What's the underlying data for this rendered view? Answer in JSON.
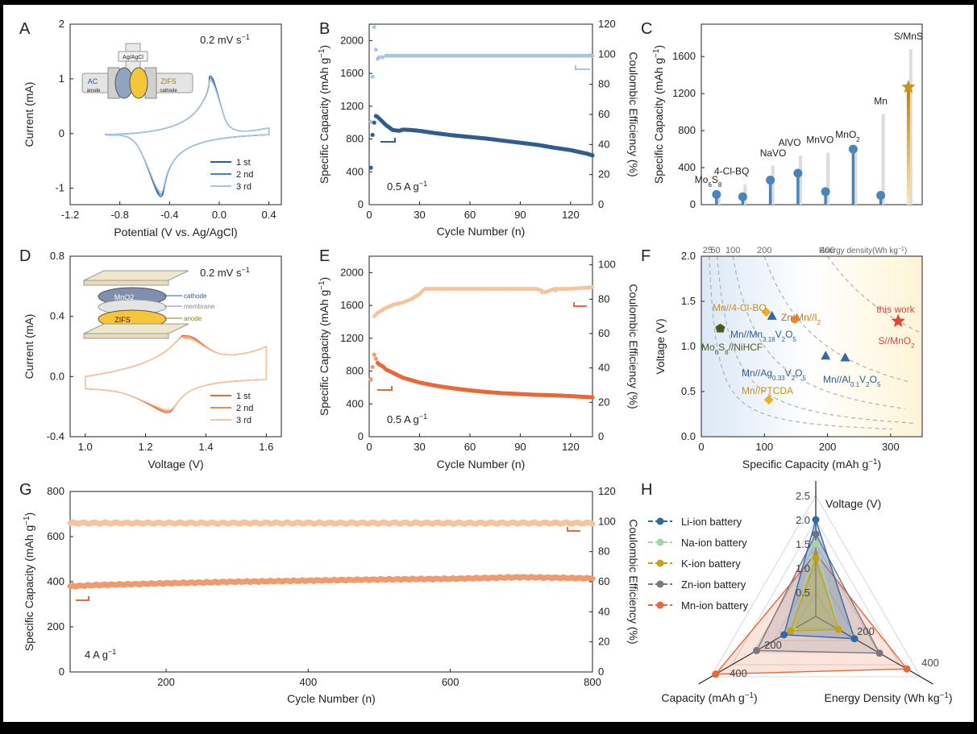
{
  "panels": {
    "A": {
      "letter": "A",
      "rate": "0.2 mV s",
      "rate_sup": "−1",
      "ylabel": "Current (mA)",
      "xlabel": "Potential (V vs. Ag/AgCl)",
      "xticks": [
        "-1.2",
        "-0.8",
        "-0.4",
        "0.0",
        "0.4"
      ],
      "yticks": [
        "-1",
        "0",
        "1",
        "2"
      ],
      "legend": [
        "1 st",
        "2 nd",
        "3 rd"
      ],
      "inset": {
        "ref": "Ag/AgCl",
        "left": "AC",
        "left_sub": "anode",
        "right": "ZIFS",
        "right_sub": "cathode"
      }
    },
    "B": {
      "letter": "B",
      "ylabel": "Specific Capacity (mAh g",
      "ylabel_sup": "−1",
      "ylabel_end": ")",
      "y2label": "Coulombic Efficiency (%)",
      "xlabel": "Cycle Number (n)",
      "xticks": [
        "0",
        "30",
        "60",
        "90",
        "120"
      ],
      "yticks": [
        "0",
        "400",
        "800",
        "1200",
        "1600",
        "2000"
      ],
      "y2ticks": [
        "0",
        "20",
        "40",
        "60",
        "80",
        "100",
        "120"
      ],
      "rate": "0.5  A g",
      "rate_sup": "−1"
    },
    "C": {
      "letter": "C",
      "ylabel": "Specific Capacity (mAh g",
      "ylabel_sup": "−1",
      "ylabel_end": ")",
      "yticks": [
        "0",
        "400",
        "800",
        "1200",
        "1600"
      ],
      "labels": [
        "Mo6S8",
        "4-Cl-BQ",
        "NaVO",
        "AlVO",
        "MnVO",
        "MnO2",
        "Mn",
        "S/MnS"
      ]
    },
    "D": {
      "letter": "D",
      "rate": "0.2 mV s",
      "rate_sup": "−1",
      "ylabel": "Current (mA)",
      "xlabel": "Voltage (V)",
      "xticks": [
        "1.0",
        "1.2",
        "1.4",
        "1.6"
      ],
      "yticks": [
        "-0.4",
        "0.0",
        "0.4",
        "0.8"
      ],
      "legend": [
        "1 st",
        "2 nd",
        "3 rd"
      ],
      "inset": {
        "top": "MnO2",
        "bottom": "ZIFS",
        "l1": "cathode",
        "l2": "membrane",
        "l3": "anode"
      }
    },
    "E": {
      "letter": "E",
      "ylabel": "Specific Capacity (mAh g",
      "ylabel_sup": "−1",
      "ylabel_end": ")",
      "y2label": "Coulombic Efficiency (%)",
      "xlabel": "Cycle Number (n)",
      "xticks": [
        "0",
        "30",
        "60",
        "90",
        "120"
      ],
      "yticks": [
        "0",
        "400",
        "800",
        "1200",
        "1600",
        "2000"
      ],
      "y2ticks": [
        "0",
        "20",
        "40",
        "60",
        "80",
        "100"
      ],
      "rate": "0.5  A g",
      "rate_sup": "−1"
    },
    "F": {
      "letter": "F",
      "ylabel": "Voltage (V)",
      "xlabel": "Specific Capacity (mAh g",
      "xlabel_sup": "−1",
      "xlabel_end": ")",
      "xticks": [
        "0",
        "100",
        "200",
        "300"
      ],
      "yticks": [
        "0.0",
        "0.5",
        "1.0",
        "1.5",
        "2.0"
      ],
      "energy_ticks": [
        "25",
        "50",
        "100",
        "200",
        "400"
      ],
      "energy_label": "Energy density(Wh kg",
      "energy_sup": "−1",
      "energy_end": ")",
      "this_work": "this work",
      "this_work_sub": "S//MnO2"
    },
    "G": {
      "letter": "G",
      "ylabel": "Specific Capacity (mAh g",
      "ylabel_sup": "−1",
      "ylabel_end": ")",
      "y2label": "Coulombic Efficiency (%)",
      "xlabel": "Cycle Number (n)",
      "xticks": [
        "200",
        "400",
        "600",
        "800"
      ],
      "yticks": [
        "0",
        "200",
        "400",
        "600",
        "800"
      ],
      "y2ticks": [
        "0",
        "20",
        "40",
        "60",
        "80",
        "100",
        "120"
      ],
      "rate": "4  A g",
      "rate_sup": "−1"
    },
    "H": {
      "letter": "H",
      "axis_voltage": "Voltage (V)",
      "axis_capacity": "Capacity (mAh g",
      "axis_capacity_sup": "−1",
      "axis_capacity_end": ")",
      "axis_energy": "Energy Density (Wh kg",
      "axis_energy_sup": "−1",
      "axis_energy_end": ")",
      "voltage_ticks": [
        "0.5",
        "1.0",
        "1.5",
        "2.0",
        "2.5"
      ],
      "cap_ticks": [
        "200",
        "400"
      ],
      "energy_ticks": [
        "200",
        "400"
      ],
      "legend": [
        "Li-ion battery",
        "Na-ion battery",
        "K-ion battery",
        "Zn-ion battery",
        "Mn-ion battery"
      ]
    }
  },
  "colors": {
    "blue_dark": "#2f5d8f",
    "blue_mid": "#4a84bd",
    "blue_light": "#a9c3e6",
    "orange": "#e8683a",
    "orange_light": "#f6c39d",
    "gold": "#d8a72a",
    "red": "#e0443a"
  },
  "chart_data": [
    {
      "panel": "A",
      "type": "line",
      "title": "",
      "xlabel": "Potential (V vs. Ag/AgCl)",
      "ylabel": "Current (mA)",
      "xlim": [
        -1.2,
        0.5
      ],
      "ylim": [
        -1.3,
        2.0
      ],
      "series": [
        {
          "name": "1 st"
        },
        {
          "name": "2 nd"
        },
        {
          "name": "3 rd"
        }
      ],
      "features": {
        "anodic_peak": [
          -0.07,
          1.05
        ],
        "cathodic_peak": [
          -0.47,
          -1.15
        ]
      }
    },
    {
      "panel": "B",
      "type": "scatter",
      "xlabel": "Cycle Number (n)",
      "ylabel": "Specific Capacity",
      "y2label": "Coulombic Efficiency (%)",
      "xlim": [
        0,
        133
      ],
      "ylim": [
        0,
        2200
      ],
      "y2lim": [
        0,
        120
      ],
      "capacity": {
        "x": [
          1,
          2,
          3,
          4,
          5,
          6,
          8,
          10,
          12,
          14,
          16,
          18,
          20,
          25,
          30,
          40,
          50,
          60,
          70,
          80,
          90,
          100,
          110,
          120,
          130,
          133
        ],
        "y": [
          450,
          850,
          1000,
          1080,
          1070,
          1050,
          1010,
          970,
          940,
          910,
          905,
          900,
          915,
          910,
          900,
          870,
          845,
          825,
          805,
          780,
          755,
          730,
          695,
          665,
          620,
          600
        ]
      },
      "efficiency": {
        "x": [
          1,
          2,
          3,
          4,
          5,
          6,
          8,
          10,
          15,
          20,
          40,
          60,
          80,
          100,
          120,
          133
        ],
        "y": [
          55,
          85,
          118,
          103,
          97,
          98,
          98,
          99,
          99,
          99,
          99,
          99,
          99,
          99,
          99,
          99
        ]
      }
    },
    {
      "panel": "C",
      "type": "bar",
      "categories": [
        "Mo6S8",
        "4-Cl-BQ",
        "NaVO",
        "AlVO",
        "MnVO",
        "MnO2",
        "Mn",
        "S/MnS"
      ],
      "ylabel": "Specific Capacity",
      "ylim": [
        0,
        1950
      ],
      "values": [
        110,
        85,
        265,
        340,
        140,
        600,
        100,
        1270
      ],
      "theoretical": [
        130,
        220,
        420,
        530,
        560,
        620,
        980,
        1680
      ]
    },
    {
      "panel": "D",
      "type": "line",
      "xlabel": "Voltage (V)",
      "ylabel": "Current (mA)",
      "xlim": [
        0.95,
        1.65
      ],
      "ylim": [
        -0.4,
        0.8
      ],
      "series": [
        {
          "name": "1 st"
        },
        {
          "name": "2 nd"
        },
        {
          "name": "3 rd"
        }
      ],
      "features": {
        "anodic_peak": [
          1.33,
          0.27
        ],
        "cathodic_peak": [
          1.27,
          -0.24
        ]
      }
    },
    {
      "panel": "E",
      "type": "scatter",
      "xlabel": "Cycle Number (n)",
      "ylabel": "Specific Capacity",
      "y2label": "Coulombic Efficiency (%)",
      "xlim": [
        0,
        133
      ],
      "ylim": [
        0,
        2200
      ],
      "y2lim": [
        0,
        105
      ],
      "capacity": {
        "x": [
          1,
          2,
          3,
          4,
          5,
          6,
          8,
          10,
          15,
          20,
          30,
          40,
          50,
          60,
          70,
          80,
          90,
          100,
          110,
          120,
          133
        ],
        "y": [
          700,
          850,
          1000,
          950,
          900,
          880,
          860,
          820,
          770,
          720,
          660,
          620,
          590,
          565,
          545,
          530,
          520,
          510,
          505,
          495,
          480
        ]
      },
      "efficiency": {
        "x": [
          1,
          3,
          5,
          10,
          15,
          20,
          25,
          30,
          33,
          40,
          60,
          80,
          100,
          105,
          110,
          120,
          133
        ],
        "y": [
          33,
          70,
          72,
          75,
          77,
          78,
          80,
          83,
          86,
          86,
          86,
          86,
          86,
          84,
          86,
          86,
          87
        ]
      }
    },
    {
      "panel": "F",
      "type": "scatter",
      "xlabel": "Specific Capacity",
      "ylabel": "Voltage (V)",
      "xlim": [
        0,
        350
      ],
      "ylim": [
        0,
        2.0
      ],
      "points": [
        {
          "name": "Mn//4-Cl-BQ",
          "x": 103,
          "y": 1.38
        },
        {
          "name": "Zn-Mn//I2",
          "x": 148,
          "y": 1.3
        },
        {
          "name": "Mn//Mn3.18V2O5",
          "x": 112,
          "y": 1.34
        },
        {
          "name": "Mo6S8//NiHCF",
          "x": 30,
          "y": 1.2
        },
        {
          "name": "Mn//Ag0.33V2O5",
          "x": 197,
          "y": 0.9
        },
        {
          "name": "Mn//Al0.1V2O5",
          "x": 228,
          "y": 0.88
        },
        {
          "name": "Mn//PTCDA",
          "x": 107,
          "y": 0.41
        },
        {
          "name": "this work S//MnO2",
          "x": 312,
          "y": 1.28
        }
      ],
      "energy_isolines": [
        25,
        50,
        100,
        200,
        400
      ]
    },
    {
      "panel": "G",
      "type": "scatter",
      "xlabel": "Cycle Number (n)",
      "ylabel": "Specific Capacity",
      "y2label": "Coulombic Efficiency (%)",
      "xlim": [
        65,
        800
      ],
      "ylim": [
        0,
        800
      ],
      "y2lim": [
        0,
        120
      ],
      "capacity": {
        "x": [
          65,
          100,
          200,
          300,
          400,
          500,
          600,
          700,
          800
        ],
        "y": [
          380,
          385,
          393,
          400,
          405,
          410,
          413,
          420,
          415
        ]
      },
      "efficiency": {
        "x": [
          65,
          800
        ],
        "y": [
          99,
          99
        ]
      }
    },
    {
      "panel": "H",
      "type": "radar",
      "axes": [
        "Voltage (V)",
        "Capacity",
        "Energy Density"
      ],
      "series": [
        {
          "name": "Li-ion battery",
          "values": [
            2.0,
            140,
            170
          ]
        },
        {
          "name": "Na-ion battery",
          "values": [
            1.5,
            100,
            100
          ]
        },
        {
          "name": "K-ion battery",
          "values": [
            1.2,
            110,
            100
          ]
        },
        {
          "name": "Zn-ion battery",
          "values": [
            1.7,
            260,
            280
          ]
        },
        {
          "name": "Mn-ion battery",
          "values": [
            1.3,
            440,
            400
          ]
        }
      ]
    }
  ]
}
